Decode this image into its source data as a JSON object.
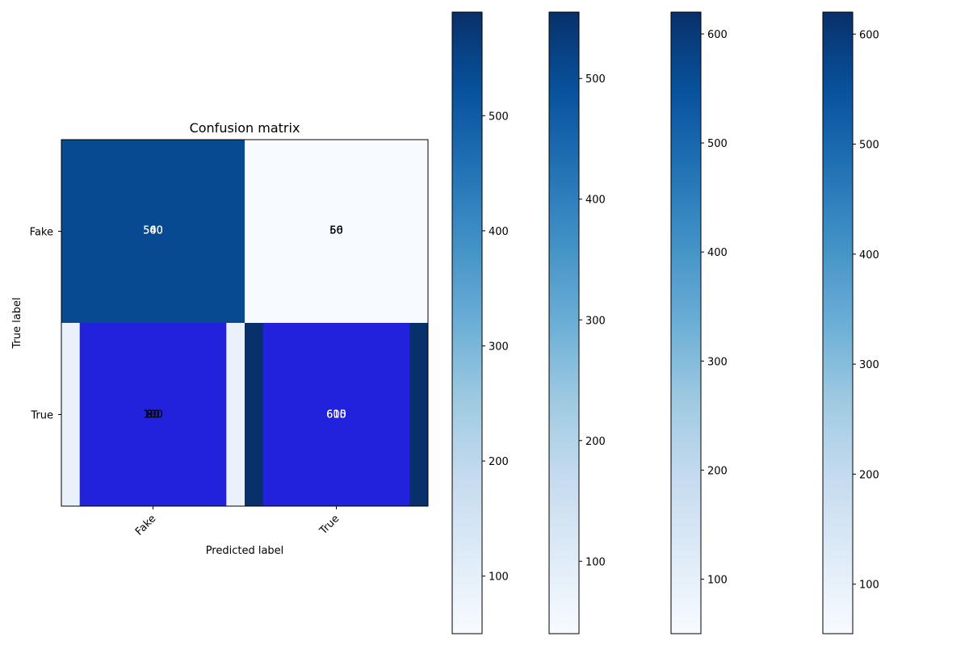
{
  "chart_data": {
    "type": "heatmap",
    "title": "Confusion matrix",
    "xlabel": "Predicted label",
    "ylabel": "True label",
    "x_categories": [
      "Fake",
      "True"
    ],
    "y_categories": [
      "Fake",
      "True"
    ],
    "colormap": "Blues",
    "matrix": [
      [
        560,
        50
      ],
      [
        90,
        615
      ]
    ],
    "overlapping_cell_annotations": [
      [
        [
          500,
          540,
          560
        ],
        [
          50,
          56,
          60
        ]
      ],
      [
        [
          80,
          90,
          100
        ],
        [
          600,
          610,
          615
        ]
      ]
    ],
    "bars": {
      "color": "#2222dd",
      "categories": [
        "Fake",
        "True"
      ],
      "values": [
        0.5,
        0.5
      ]
    },
    "colorbars": [
      {
        "ticks": [
          100,
          200,
          300,
          400,
          500
        ],
        "range": [
          50,
          590
        ]
      },
      {
        "ticks": [
          100,
          200,
          300,
          400,
          500
        ],
        "range": [
          40,
          555
        ]
      },
      {
        "ticks": [
          100,
          200,
          300,
          400,
          500,
          600
        ],
        "range": [
          50,
          620
        ]
      },
      {
        "ticks": [
          100,
          200,
          300,
          400,
          500,
          600
        ],
        "range": [
          55,
          620
        ]
      }
    ]
  }
}
